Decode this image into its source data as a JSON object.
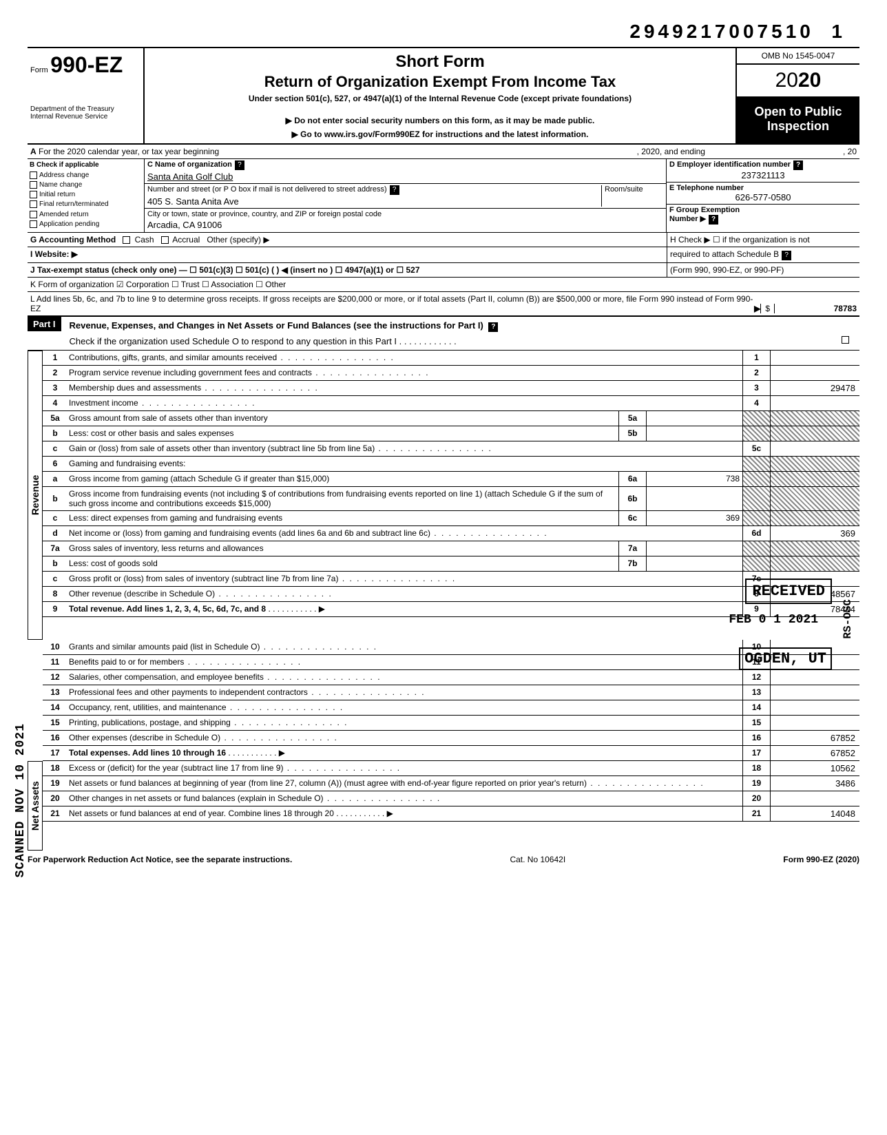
{
  "top_number": "29492170075101",
  "top_number_part1": "2949217007510",
  "top_number_part2": "1",
  "form": {
    "form_label": "Form",
    "form_no": "990-EZ",
    "short_form": "Short Form",
    "return_title": "Return of Organization Exempt From Income Tax",
    "under_section": "Under section 501(c), 527, or 4947(a)(1) of the Internal Revenue Code (except private foundations)",
    "do_not": "▶ Do not enter social security numbers on this form, as it may be made public.",
    "go_to": "▶ Go to www.irs.gov/Form990EZ for instructions and the latest information.",
    "dept1": "Department of the Treasury",
    "dept2": "Internal Revenue Service",
    "omb": "OMB No 1545-0047",
    "year_prefix": "20",
    "year_bold": "20",
    "open1": "Open to Public",
    "open2": "Inspection"
  },
  "lineA": {
    "label_a": "A",
    "text1": "For the 2020 calendar year, or tax year beginning",
    "text2": ", 2020, and ending",
    "text3": ", 20"
  },
  "B": {
    "header": "B  Check if applicable",
    "items": [
      "Address change",
      "Name change",
      "Initial return",
      "Final return/terminated",
      "Amended return",
      "Application pending"
    ]
  },
  "C": {
    "label": "C  Name of organization",
    "name": "Santa Anita Golf Club",
    "addr_label": "Number and street (or P O  box if mail is not delivered to street address)",
    "room_label": "Room/suite",
    "addr": "405 S. Santa Anita Ave",
    "city_label": "City or town, state or province, country, and ZIP or foreign postal code",
    "city": "Arcadia, CA 91006"
  },
  "D": {
    "label": "D  Employer identification number",
    "val": "237321113",
    "E_label": "E  Telephone number",
    "E_val": "626-577-0580",
    "F_label": "F  Group Exemption",
    "F_label2": "Number ▶"
  },
  "G": {
    "label": "G  Accounting Method",
    "opts": [
      "Cash",
      "Accrual",
      "Other (specify) ▶"
    ]
  },
  "H": {
    "text1": "H  Check ▶ ☐ if the organization is not",
    "text2": "required to attach Schedule B",
    "text3": "(Form 990, 990-EZ, or 990-PF)"
  },
  "I": {
    "label": "I  Website: ▶"
  },
  "J": {
    "label": "J  Tax-exempt status (check only one) — ☐ 501(c)(3)  ☐ 501(c) (        ) ◀ (insert no ) ☐ 4947(a)(1) or  ☐ 527"
  },
  "K": {
    "label": "K  Form of organization    ☑ Corporation    ☐ Trust    ☐ Association    ☐ Other"
  },
  "L": {
    "text": "L  Add lines 5b, 6c, and 7b to line 9 to determine gross receipts. If gross receipts are $200,000 or more, or if total assets (Part II, column (B)) are $500,000 or more, file Form 990 instead of Form 990-EZ",
    "arrow": "▶",
    "dollar": "$",
    "amount": "78783"
  },
  "part1": {
    "hdr": "Part I",
    "title": "Revenue, Expenses, and Changes in Net Assets or Fund Balances (see the instructions for Part I)",
    "check": "Check if the organization used Schedule O to respond to any question in this Part I"
  },
  "vtabs": {
    "revenue": "Revenue",
    "netassets": "Net Assets"
  },
  "lines": {
    "l1": {
      "n": "1",
      "d": "Contributions, gifts, grants, and similar amounts received",
      "r": "1",
      "v": ""
    },
    "l2": {
      "n": "2",
      "d": "Program service revenue including government fees and contracts",
      "r": "2",
      "v": ""
    },
    "l3": {
      "n": "3",
      "d": "Membership dues and assessments",
      "r": "3",
      "v": "29478"
    },
    "l4": {
      "n": "4",
      "d": "Investment income",
      "r": "4",
      "v": ""
    },
    "l5a": {
      "n": "5a",
      "d": "Gross amount from sale of assets other than inventory",
      "m": "5a",
      "mv": ""
    },
    "l5b": {
      "n": "b",
      "d": "Less: cost or other basis and sales expenses",
      "m": "5b",
      "mv": ""
    },
    "l5c": {
      "n": "c",
      "d": "Gain or (loss) from sale of assets other than inventory (subtract line 5b from line 5a)",
      "r": "5c",
      "v": ""
    },
    "l6": {
      "n": "6",
      "d": "Gaming and fundraising events:"
    },
    "l6a": {
      "n": "a",
      "d": "Gross income from gaming (attach Schedule G if greater than $15,000)",
      "m": "6a",
      "mv": "738"
    },
    "l6b": {
      "n": "b",
      "d": "Gross income from fundraising events (not including  $                    of contributions from fundraising events reported on line 1) (attach Schedule G if the sum of such gross income and contributions exceeds $15,000)",
      "m": "6b",
      "mv": ""
    },
    "l6c": {
      "n": "c",
      "d": "Less: direct expenses from gaming and fundraising events",
      "m": "6c",
      "mv": "369"
    },
    "l6d": {
      "n": "d",
      "d": "Net income or (loss) from gaming and fundraising events (add lines 6a and 6b and subtract line 6c)",
      "r": "6d",
      "v": "369"
    },
    "l7a": {
      "n": "7a",
      "d": "Gross sales of inventory, less returns and allowances",
      "m": "7a",
      "mv": ""
    },
    "l7b": {
      "n": "b",
      "d": "Less: cost of goods sold",
      "m": "7b",
      "mv": ""
    },
    "l7c": {
      "n": "c",
      "d": "Gross profit or (loss) from sales of inventory (subtract line 7b from line 7a)",
      "r": "7c",
      "v": ""
    },
    "l8": {
      "n": "8",
      "d": "Other revenue (describe in Schedule O)",
      "r": "8",
      "v": "48567"
    },
    "l9": {
      "n": "9",
      "d": "Total revenue. Add lines 1, 2, 3, 4, 5c, 6d, 7c, and 8",
      "r": "9",
      "v": "78414",
      "bold": true
    },
    "l10": {
      "n": "10",
      "d": "Grants and similar amounts paid (list in Schedule O)",
      "r": "10",
      "v": ""
    },
    "l11": {
      "n": "11",
      "d": "Benefits paid to or for members",
      "r": "11",
      "v": ""
    },
    "l12": {
      "n": "12",
      "d": "Salaries, other compensation, and employee benefits",
      "r": "12",
      "v": ""
    },
    "l13": {
      "n": "13",
      "d": "Professional fees and other payments to independent contractors",
      "r": "13",
      "v": ""
    },
    "l14": {
      "n": "14",
      "d": "Occupancy, rent, utilities, and maintenance",
      "r": "14",
      "v": ""
    },
    "l15": {
      "n": "15",
      "d": "Printing, publications, postage, and shipping",
      "r": "15",
      "v": ""
    },
    "l16": {
      "n": "16",
      "d": "Other expenses (describe in Schedule O)",
      "r": "16",
      "v": "67852"
    },
    "l17": {
      "n": "17",
      "d": "Total expenses. Add lines 10 through 16",
      "r": "17",
      "v": "67852",
      "bold": true
    },
    "l18": {
      "n": "18",
      "d": "Excess or (deficit) for the year (subtract line 17 from line 9)",
      "r": "18",
      "v": "10562"
    },
    "l19": {
      "n": "19",
      "d": "Net assets or fund balances at beginning of year (from line 27, column (A)) (must agree with end-of-year figure reported on prior year's return)",
      "r": "19",
      "v": "3486"
    },
    "l20": {
      "n": "20",
      "d": "Other changes in net assets or fund balances (explain in Schedule O)",
      "r": "20",
      "v": ""
    },
    "l21": {
      "n": "21",
      "d": "Net assets or fund balances at end of year. Combine lines 18 through 20",
      "r": "21",
      "v": "14048"
    }
  },
  "stamps": {
    "received": "RECEIVED",
    "date": "FEB 0 1 2021",
    "ogden": "OGDEN, UT",
    "left": "SCANNED NOV 10 2021",
    "rsosc": "RS-OSC"
  },
  "footer": {
    "left": "For Paperwork Reduction Act Notice, see the separate instructions.",
    "mid": "Cat. No  10642I",
    "right": "Form 990-EZ (2020)"
  }
}
